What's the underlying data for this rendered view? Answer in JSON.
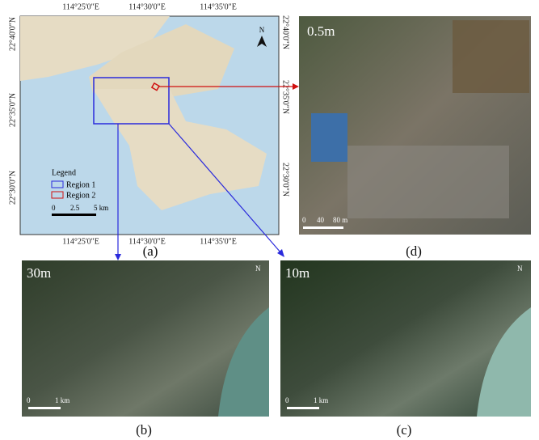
{
  "panel_a": {
    "label": "(a)",
    "top_ticks": [
      "114°25'0\"E",
      "114°30'0\"E",
      "114°35'0\"E"
    ],
    "bottom_ticks": [
      "114°25'0\"E",
      "114°30'0\"E",
      "114°35'0\"E"
    ],
    "left_ticks": [
      "22°40'0\"N",
      "22°35'0\"N",
      "22°30'0\"N"
    ],
    "right_ticks": [
      "22°40'0\"N",
      "22°35'0\"N",
      "22°30'0\"N"
    ],
    "legend": {
      "title": "Legend",
      "items": [
        "Region 1",
        "Region 2"
      ]
    },
    "scale": [
      "0",
      "2.5",
      "5 km"
    ],
    "north": "N"
  },
  "panel_b": {
    "label": "(b)",
    "resolution": "30m",
    "scale": [
      "0",
      "1 km"
    ],
    "north": "N"
  },
  "panel_c": {
    "label": "(c)",
    "resolution": "10m",
    "scale": [
      "0",
      "1 km"
    ],
    "north": "N"
  },
  "panel_d": {
    "label": "(d)",
    "resolution": "0.5m",
    "scale": [
      "0",
      "40",
      "80 m"
    ]
  }
}
